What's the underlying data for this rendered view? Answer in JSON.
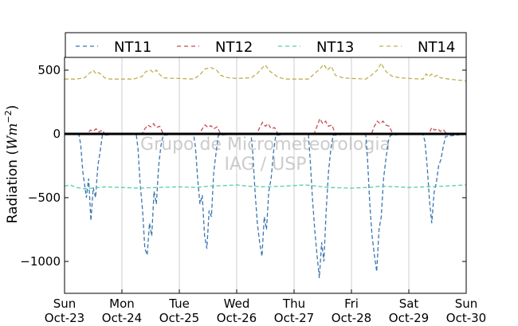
{
  "chart_data": {
    "type": "line",
    "ylabel": "Radiation ($Wm^{-2}$)",
    "ylabel_parts": {
      "main": "Radiation (",
      "unit_base": "Wm",
      "unit_exp": "−2",
      "close": ")"
    },
    "ylim": [
      -1250,
      600
    ],
    "yticks": [
      {
        "value": 500,
        "label": "500"
      },
      {
        "value": 0,
        "label": "0"
      },
      {
        "value": -500,
        "label": "−500"
      },
      {
        "value": -1000,
        "label": "−1000"
      }
    ],
    "xlim": [
      0,
      7
    ],
    "xticks": [
      {
        "day": 0,
        "weekday": "Sun",
        "date": "Oct-23"
      },
      {
        "day": 1,
        "weekday": "Mon",
        "date": "Oct-24"
      },
      {
        "day": 2,
        "weekday": "Tue",
        "date": "Oct-25"
      },
      {
        "day": 3,
        "weekday": "Wed",
        "date": "Oct-26"
      },
      {
        "day": 4,
        "weekday": "Thu",
        "date": "Oct-27"
      },
      {
        "day": 5,
        "weekday": "Fri",
        "date": "Oct-28"
      },
      {
        "day": 6,
        "weekday": "Sat",
        "date": "Oct-29"
      },
      {
        "day": 7,
        "weekday": "Sun",
        "date": "Oct-30"
      }
    ],
    "grid": "vertical",
    "zero_line": true,
    "legend_position": "top",
    "watermark": [
      "Grupo de Micrometeorologia",
      "IAG / USP"
    ],
    "series": [
      {
        "name": "NT11",
        "color": "#3b75af",
        "points": [
          [
            0,
            0
          ],
          [
            0.25,
            -5
          ],
          [
            0.28,
            -80
          ],
          [
            0.32,
            -300
          ],
          [
            0.38,
            -500
          ],
          [
            0.42,
            -350
          ],
          [
            0.46,
            -680
          ],
          [
            0.5,
            -420
          ],
          [
            0.54,
            -500
          ],
          [
            0.58,
            -250
          ],
          [
            0.62,
            -140
          ],
          [
            0.66,
            -10
          ],
          [
            1.0,
            0
          ],
          [
            1.25,
            -5
          ],
          [
            1.28,
            -120
          ],
          [
            1.32,
            -400
          ],
          [
            1.36,
            -600
          ],
          [
            1.4,
            -900
          ],
          [
            1.44,
            -950
          ],
          [
            1.48,
            -700
          ],
          [
            1.52,
            -800
          ],
          [
            1.56,
            -450
          ],
          [
            1.6,
            -550
          ],
          [
            1.64,
            -250
          ],
          [
            1.68,
            -90
          ],
          [
            1.72,
            -10
          ],
          [
            2.0,
            0
          ],
          [
            2.25,
            -5
          ],
          [
            2.28,
            -100
          ],
          [
            2.32,
            -350
          ],
          [
            2.36,
            -550
          ],
          [
            2.4,
            -480
          ],
          [
            2.44,
            -800
          ],
          [
            2.48,
            -900
          ],
          [
            2.52,
            -600
          ],
          [
            2.56,
            -650
          ],
          [
            2.6,
            -300
          ],
          [
            2.64,
            -150
          ],
          [
            2.68,
            -10
          ],
          [
            3.0,
            0
          ],
          [
            3.25,
            -5
          ],
          [
            3.28,
            -150
          ],
          [
            3.32,
            -450
          ],
          [
            3.36,
            -700
          ],
          [
            3.4,
            -850
          ],
          [
            3.44,
            -960
          ],
          [
            3.48,
            -650
          ],
          [
            3.52,
            -750
          ],
          [
            3.56,
            -450
          ],
          [
            3.6,
            -350
          ],
          [
            3.64,
            -150
          ],
          [
            3.68,
            -10
          ],
          [
            4.0,
            0
          ],
          [
            4.25,
            -5
          ],
          [
            4.28,
            -200
          ],
          [
            4.32,
            -500
          ],
          [
            4.36,
            -750
          ],
          [
            4.4,
            -950
          ],
          [
            4.44,
            -1130
          ],
          [
            4.48,
            -850
          ],
          [
            4.52,
            -1000
          ],
          [
            4.56,
            -600
          ],
          [
            4.6,
            -300
          ],
          [
            4.64,
            -120
          ],
          [
            4.68,
            -10
          ],
          [
            5.0,
            0
          ],
          [
            5.25,
            -5
          ],
          [
            5.28,
            -200
          ],
          [
            5.32,
            -550
          ],
          [
            5.36,
            -800
          ],
          [
            5.4,
            -950
          ],
          [
            5.44,
            -1080
          ],
          [
            5.48,
            -750
          ],
          [
            5.52,
            -650
          ],
          [
            5.56,
            -350
          ],
          [
            5.6,
            -200
          ],
          [
            5.64,
            -60
          ],
          [
            5.68,
            -10
          ],
          [
            6.0,
            0
          ],
          [
            6.25,
            -5
          ],
          [
            6.28,
            -60
          ],
          [
            6.32,
            -250
          ],
          [
            6.36,
            -520
          ],
          [
            6.4,
            -700
          ],
          [
            6.44,
            -460
          ],
          [
            6.48,
            -380
          ],
          [
            6.52,
            -250
          ],
          [
            6.56,
            -200
          ],
          [
            6.6,
            -100
          ],
          [
            6.64,
            -20
          ],
          [
            7.0,
            0
          ]
        ]
      },
      {
        "name": "NT12",
        "color": "#c44e52",
        "points": [
          [
            0,
            0
          ],
          [
            0.4,
            0
          ],
          [
            0.45,
            30
          ],
          [
            0.5,
            20
          ],
          [
            0.55,
            40
          ],
          [
            0.6,
            15
          ],
          [
            0.66,
            30
          ],
          [
            0.7,
            0
          ],
          [
            1.0,
            0
          ],
          [
            1.35,
            0
          ],
          [
            1.4,
            40
          ],
          [
            1.45,
            70
          ],
          [
            1.5,
            55
          ],
          [
            1.55,
            80
          ],
          [
            1.6,
            50
          ],
          [
            1.66,
            60
          ],
          [
            1.72,
            0
          ],
          [
            2.0,
            0
          ],
          [
            2.35,
            0
          ],
          [
            2.4,
            40
          ],
          [
            2.45,
            70
          ],
          [
            2.5,
            50
          ],
          [
            2.55,
            65
          ],
          [
            2.6,
            40
          ],
          [
            2.66,
            55
          ],
          [
            2.72,
            0
          ],
          [
            3.0,
            0
          ],
          [
            3.35,
            0
          ],
          [
            3.4,
            50
          ],
          [
            3.45,
            90
          ],
          [
            3.5,
            60
          ],
          [
            3.55,
            80
          ],
          [
            3.6,
            40
          ],
          [
            3.66,
            50
          ],
          [
            3.72,
            0
          ],
          [
            4.0,
            0
          ],
          [
            4.35,
            0
          ],
          [
            4.4,
            60
          ],
          [
            4.45,
            120
          ],
          [
            4.5,
            80
          ],
          [
            4.55,
            100
          ],
          [
            4.6,
            60
          ],
          [
            4.66,
            70
          ],
          [
            4.72,
            0
          ],
          [
            5.0,
            0
          ],
          [
            5.35,
            0
          ],
          [
            5.4,
            60
          ],
          [
            5.45,
            100
          ],
          [
            5.5,
            80
          ],
          [
            5.55,
            100
          ],
          [
            5.6,
            70
          ],
          [
            5.66,
            60
          ],
          [
            5.72,
            0
          ],
          [
            6.0,
            0
          ],
          [
            6.35,
            0
          ],
          [
            6.4,
            50
          ],
          [
            6.45,
            30
          ],
          [
            6.5,
            40
          ],
          [
            6.55,
            20
          ],
          [
            6.6,
            35
          ],
          [
            6.66,
            0
          ],
          [
            7.0,
            0
          ]
        ]
      },
      {
        "name": "NT13",
        "color": "#55cfa3",
        "points": [
          [
            0,
            -410
          ],
          [
            0.1,
            -400
          ],
          [
            0.2,
            -420
          ],
          [
            0.35,
            -430
          ],
          [
            0.5,
            -425
          ],
          [
            0.7,
            -415
          ],
          [
            1.0,
            -420
          ],
          [
            1.3,
            -425
          ],
          [
            1.6,
            -420
          ],
          [
            2.0,
            -415
          ],
          [
            2.3,
            -420
          ],
          [
            2.5,
            -410
          ],
          [
            2.8,
            -405
          ],
          [
            3.0,
            -400
          ],
          [
            3.2,
            -410
          ],
          [
            3.5,
            -415
          ],
          [
            3.8,
            -410
          ],
          [
            4.0,
            -405
          ],
          [
            4.2,
            -400
          ],
          [
            4.4,
            -410
          ],
          [
            4.6,
            -420
          ],
          [
            5.0,
            -425
          ],
          [
            5.3,
            -420
          ],
          [
            5.5,
            -410
          ],
          [
            5.8,
            -415
          ],
          [
            6.0,
            -420
          ],
          [
            6.3,
            -415
          ],
          [
            6.6,
            -410
          ],
          [
            6.8,
            -405
          ],
          [
            7.0,
            -400
          ]
        ]
      },
      {
        "name": "NT14",
        "color": "#bdb14f",
        "points": [
          [
            0,
            430
          ],
          [
            0.2,
            430
          ],
          [
            0.35,
            440
          ],
          [
            0.42,
            470
          ],
          [
            0.5,
            500
          ],
          [
            0.55,
            470
          ],
          [
            0.6,
            480
          ],
          [
            0.65,
            460
          ],
          [
            0.7,
            440
          ],
          [
            0.8,
            430
          ],
          [
            1.0,
            430
          ],
          [
            1.2,
            430
          ],
          [
            1.35,
            450
          ],
          [
            1.42,
            490
          ],
          [
            1.5,
            500
          ],
          [
            1.55,
            480
          ],
          [
            1.6,
            500
          ],
          [
            1.65,
            470
          ],
          [
            1.72,
            440
          ],
          [
            1.9,
            435
          ],
          [
            2.0,
            435
          ],
          [
            2.25,
            430
          ],
          [
            2.35,
            460
          ],
          [
            2.45,
            510
          ],
          [
            2.55,
            520
          ],
          [
            2.65,
            500
          ],
          [
            2.72,
            460
          ],
          [
            2.85,
            440
          ],
          [
            3.0,
            435
          ],
          [
            3.25,
            440
          ],
          [
            3.35,
            470
          ],
          [
            3.45,
            520
          ],
          [
            3.5,
            540
          ],
          [
            3.58,
            490
          ],
          [
            3.65,
            470
          ],
          [
            3.72,
            445
          ],
          [
            3.85,
            430
          ],
          [
            4.0,
            430
          ],
          [
            4.25,
            430
          ],
          [
            4.35,
            470
          ],
          [
            4.45,
            510
          ],
          [
            4.52,
            545
          ],
          [
            4.58,
            500
          ],
          [
            4.65,
            530
          ],
          [
            4.72,
            460
          ],
          [
            4.85,
            440
          ],
          [
            5.0,
            435
          ],
          [
            5.25,
            430
          ],
          [
            5.35,
            460
          ],
          [
            5.45,
            500
          ],
          [
            5.52,
            555
          ],
          [
            5.58,
            500
          ],
          [
            5.65,
            470
          ],
          [
            5.72,
            450
          ],
          [
            5.85,
            440
          ],
          [
            6.0,
            435
          ],
          [
            6.25,
            430
          ],
          [
            6.3,
            470
          ],
          [
            6.35,
            450
          ],
          [
            6.4,
            470
          ],
          [
            6.45,
            450
          ],
          [
            6.5,
            460
          ],
          [
            6.55,
            440
          ],
          [
            6.7,
            430
          ],
          [
            7.0,
            415
          ]
        ]
      }
    ]
  }
}
